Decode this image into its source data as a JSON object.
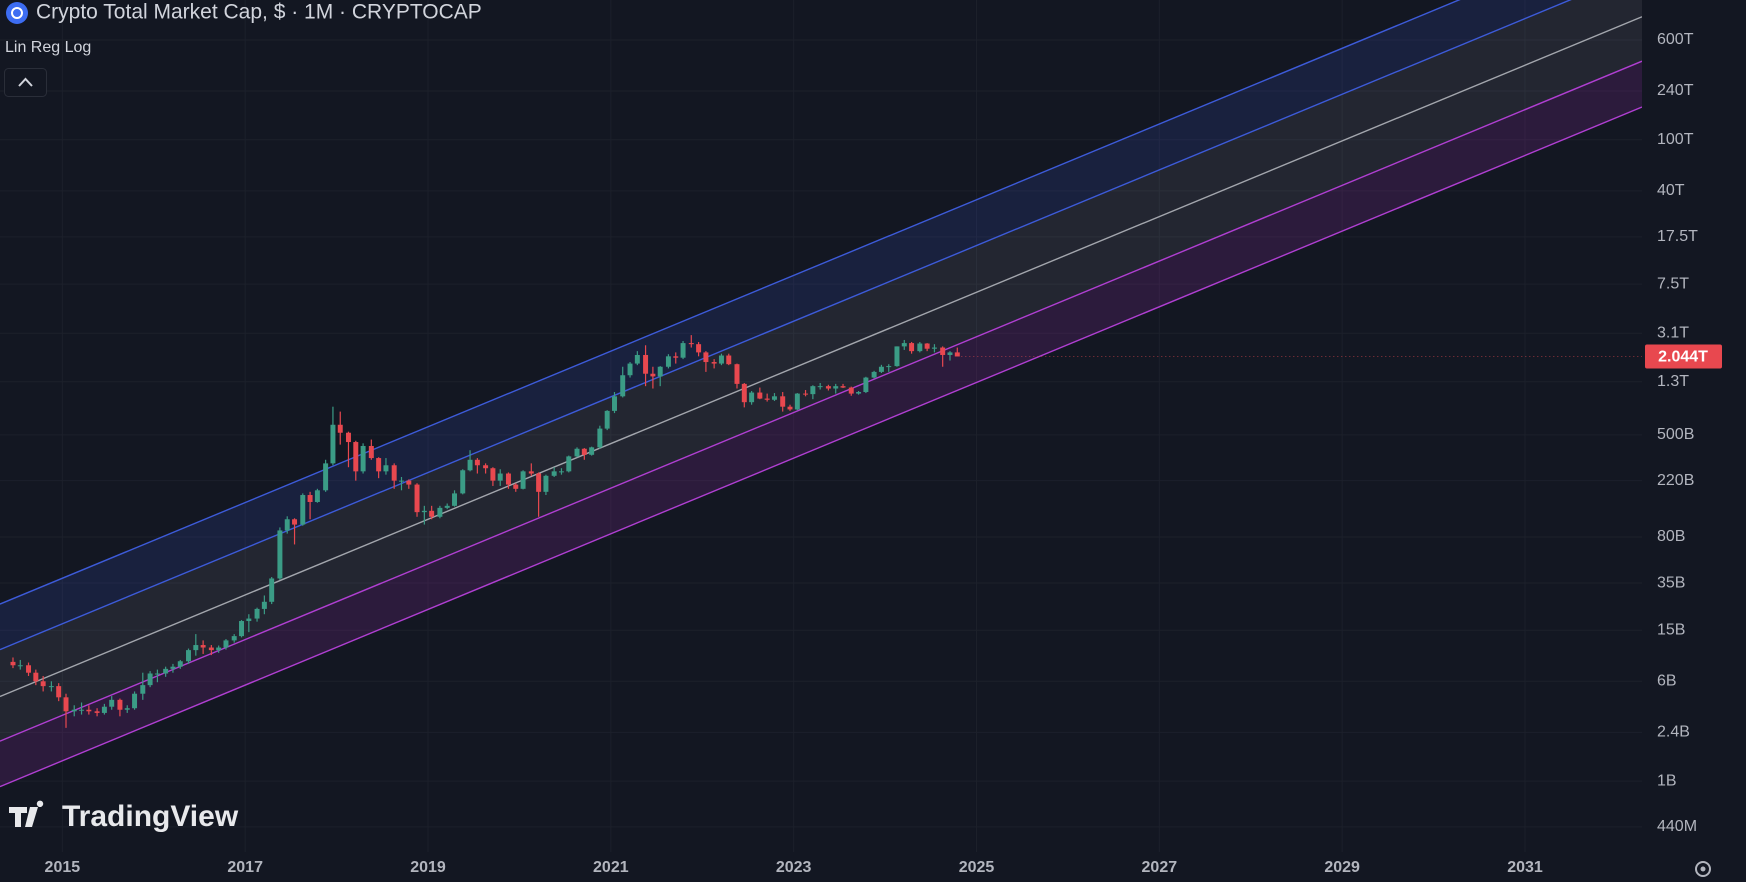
{
  "chart_data": {
    "type": "candlestick",
    "title": "Crypto Total Market Cap, $ · 1M · CRYPTOCAP",
    "indicator": "Lin Reg Log",
    "brand": "TradingView",
    "log_scale": true,
    "grid": true,
    "up_color": "#3b9c86",
    "down_color": "#e8484f",
    "xlim": [
      2014.318,
      2032.28
    ],
    "xticks": [
      2015,
      2017,
      2019,
      2021,
      2023,
      2025,
      2027,
      2029,
      2031
    ],
    "ylim": [
      0.28,
      1230000
    ],
    "yticks": [
      {
        "value": 0.44,
        "label": "440M"
      },
      {
        "value": 1,
        "label": "1B"
      },
      {
        "value": 2.4,
        "label": "2.4B"
      },
      {
        "value": 6,
        "label": "6B"
      },
      {
        "value": 15,
        "label": "15B"
      },
      {
        "value": 35,
        "label": "35B"
      },
      {
        "value": 80,
        "label": "80B"
      },
      {
        "value": 220,
        "label": "220B"
      },
      {
        "value": 500,
        "label": "500B"
      },
      {
        "value": 1300,
        "label": "1.3T"
      },
      {
        "value": 3100,
        "label": "3.1T"
      },
      {
        "value": 7500,
        "label": "7.5T"
      },
      {
        "value": 17500,
        "label": "17.5T"
      },
      {
        "value": 40000,
        "label": "40T"
      },
      {
        "value": 100000,
        "label": "100T"
      },
      {
        "value": 240000,
        "label": "240T"
      },
      {
        "value": 600000,
        "label": "600T"
      }
    ],
    "bands": [
      {
        "color": "#3d5bd9",
        "fill": "rgba(60,90,210,0.16)",
        "values": [
          24,
          4800000
        ]
      },
      {
        "color": "#3d5bd9",
        "fill": "rgba(200,200,215,0.09)",
        "values": [
          10.6,
          2100000
        ]
      },
      {
        "color": "#a3a6ad",
        "fill": "rgba(200,200,215,0.09)",
        "values": [
          4.57,
          910000
        ]
      },
      {
        "color": "#b03fd2",
        "fill": "rgba(170,50,190,0.17)",
        "values": [
          2.05,
          410000
        ]
      },
      {
        "color": "#b03fd2",
        "values": [
          0.906,
          180000
        ]
      }
    ],
    "last_value_label": "2.044T",
    "x": [
      2014.46,
      2014.54,
      2014.63,
      2014.71,
      2014.79,
      2014.88,
      2014.96,
      2015.04,
      2015.13,
      2015.21,
      2015.29,
      2015.38,
      2015.46,
      2015.54,
      2015.63,
      2015.71,
      2015.79,
      2015.88,
      2015.96,
      2016.04,
      2016.13,
      2016.21,
      2016.29,
      2016.38,
      2016.46,
      2016.54,
      2016.63,
      2016.71,
      2016.79,
      2016.88,
      2016.96,
      2017.04,
      2017.13,
      2017.21,
      2017.29,
      2017.38,
      2017.46,
      2017.54,
      2017.63,
      2017.71,
      2017.79,
      2017.88,
      2017.96,
      2018.04,
      2018.13,
      2018.21,
      2018.29,
      2018.38,
      2018.46,
      2018.54,
      2018.63,
      2018.71,
      2018.79,
      2018.88,
      2018.96,
      2019.04,
      2019.13,
      2019.21,
      2019.29,
      2019.38,
      2019.46,
      2019.54,
      2019.63,
      2019.71,
      2019.79,
      2019.88,
      2019.96,
      2020.04,
      2020.13,
      2020.21,
      2020.29,
      2020.38,
      2020.46,
      2020.54,
      2020.63,
      2020.71,
      2020.79,
      2020.88,
      2020.96,
      2021.04,
      2021.13,
      2021.21,
      2021.29,
      2021.38,
      2021.46,
      2021.54,
      2021.63,
      2021.71,
      2021.79,
      2021.88,
      2021.96,
      2022.04,
      2022.13,
      2022.21,
      2022.29,
      2022.38,
      2022.46,
      2022.54,
      2022.63,
      2022.71,
      2022.79,
      2022.88,
      2022.96,
      2023.04,
      2023.13,
      2023.21,
      2023.29,
      2023.38,
      2023.46,
      2023.54,
      2023.63,
      2023.71,
      2023.79,
      2023.88,
      2023.96,
      2024.04,
      2024.13,
      2024.21,
      2024.29,
      2024.38,
      2024.46,
      2024.54,
      2024.63,
      2024.71,
      2024.79
    ],
    "ohlc": [
      [
        8.5,
        9.2,
        7.6,
        8
      ],
      [
        8,
        8.8,
        7.4,
        8
      ],
      [
        8,
        8.4,
        6.6,
        7
      ],
      [
        7,
        7.4,
        5.6,
        6
      ],
      [
        6,
        6.6,
        5.0,
        5.5
      ],
      [
        5.5,
        6.0,
        5.0,
        5.5
      ],
      [
        5.5,
        5.8,
        4.2,
        4.5
      ],
      [
        4.5,
        4.8,
        2.6,
        3.5
      ],
      [
        3.5,
        3.9,
        3.2,
        3.6
      ],
      [
        3.6,
        4.1,
        3.3,
        3.6
      ],
      [
        3.6,
        3.9,
        3.3,
        3.5
      ],
      [
        3.5,
        3.7,
        3.2,
        3.4
      ],
      [
        3.4,
        4.0,
        3.3,
        3.8
      ],
      [
        3.8,
        4.6,
        3.6,
        4.3
      ],
      [
        4.3,
        4.4,
        3.2,
        3.6
      ],
      [
        3.6,
        3.9,
        3.4,
        3.7
      ],
      [
        3.7,
        5.0,
        3.6,
        4.8
      ],
      [
        4.8,
        7.0,
        4.3,
        5.6
      ],
      [
        5.6,
        7.2,
        5.4,
        6.9
      ],
      [
        6.9,
        7.4,
        5.9,
        6.9
      ],
      [
        6.9,
        7.8,
        6.5,
        7.5
      ],
      [
        7.5,
        8.2,
        7.0,
        7.8
      ],
      [
        7.8,
        8.8,
        7.5,
        8.6
      ],
      [
        8.6,
        10.8,
        8.2,
        10.5
      ],
      [
        10.5,
        14,
        9.5,
        11.5
      ],
      [
        11.5,
        12.5,
        9.8,
        11
      ],
      [
        11,
        11.5,
        9.6,
        10.5
      ],
      [
        10.5,
        11.4,
        10,
        11
      ],
      [
        11,
        12.8,
        10.6,
        12.5
      ],
      [
        12.5,
        14,
        12,
        13.5
      ],
      [
        13.5,
        18,
        13.2,
        17.7
      ],
      [
        17.7,
        20,
        14.5,
        18.5
      ],
      [
        18.5,
        22.5,
        17.5,
        22
      ],
      [
        22,
        28,
        20,
        25
      ],
      [
        25,
        39,
        24,
        38
      ],
      [
        38,
        95,
        37,
        90
      ],
      [
        90,
        116,
        85,
        110
      ],
      [
        110,
        112,
        70,
        100
      ],
      [
        100,
        175,
        98,
        170
      ],
      [
        170,
        180,
        110,
        150
      ],
      [
        150,
        190,
        148,
        185
      ],
      [
        185,
        320,
        180,
        300
      ],
      [
        300,
        830,
        290,
        600
      ],
      [
        600,
        760,
        420,
        520
      ],
      [
        520,
        530,
        280,
        440
      ],
      [
        440,
        450,
        220,
        260
      ],
      [
        260,
        430,
        250,
        410
      ],
      [
        410,
        460,
        320,
        330
      ],
      [
        330,
        335,
        230,
        260
      ],
      [
        260,
        330,
        245,
        290
      ],
      [
        290,
        300,
        190,
        220
      ],
      [
        220,
        235,
        185,
        220
      ],
      [
        220,
        225,
        190,
        205
      ],
      [
        205,
        210,
        115,
        125
      ],
      [
        125,
        140,
        100,
        128
      ],
      [
        128,
        140,
        110,
        115
      ],
      [
        115,
        140,
        112,
        135
      ],
      [
        135,
        146,
        132,
        140
      ],
      [
        140,
        185,
        138,
        175
      ],
      [
        175,
        270,
        172,
        265
      ],
      [
        265,
        380,
        260,
        320
      ],
      [
        320,
        330,
        250,
        290
      ],
      [
        290,
        300,
        250,
        275
      ],
      [
        275,
        280,
        200,
        220
      ],
      [
        220,
        270,
        200,
        250
      ],
      [
        250,
        255,
        190,
        205
      ],
      [
        205,
        210,
        180,
        190
      ],
      [
        190,
        265,
        188,
        260
      ],
      [
        260,
        300,
        240,
        250
      ],
      [
        250,
        255,
        115,
        180
      ],
      [
        180,
        245,
        170,
        240
      ],
      [
        240,
        280,
        235,
        260
      ],
      [
        260,
        275,
        245,
        260
      ],
      [
        260,
        345,
        255,
        340
      ],
      [
        340,
        400,
        335,
        390
      ],
      [
        390,
        395,
        320,
        350
      ],
      [
        350,
        405,
        345,
        400
      ],
      [
        400,
        590,
        390,
        560
      ],
      [
        560,
        780,
        545,
        770
      ],
      [
        770,
        1080,
        740,
        1000
      ],
      [
        1000,
        1700,
        980,
        1460
      ],
      [
        1460,
        1850,
        1400,
        1800
      ],
      [
        1800,
        2250,
        1750,
        2100
      ],
      [
        2100,
        2500,
        1200,
        1500
      ],
      [
        1500,
        1700,
        1150,
        1430
      ],
      [
        1430,
        1720,
        1200,
        1700
      ],
      [
        1700,
        2130,
        1650,
        2050
      ],
      [
        2050,
        2200,
        1800,
        2000
      ],
      [
        2000,
        2700,
        1950,
        2600
      ],
      [
        2600,
        3000,
        2400,
        2550
      ],
      [
        2550,
        2650,
        2050,
        2200
      ],
      [
        2200,
        2250,
        1550,
        1850
      ],
      [
        1850,
        1950,
        1650,
        1800
      ],
      [
        1800,
        2150,
        1750,
        2080
      ],
      [
        2080,
        2150,
        1750,
        1780
      ],
      [
        1780,
        1800,
        1150,
        1250
      ],
      [
        1250,
        1270,
        820,
        900
      ],
      [
        900,
        1100,
        860,
        1070
      ],
      [
        1070,
        1170,
        950,
        960
      ],
      [
        960,
        1050,
        910,
        940
      ],
      [
        940,
        1060,
        920,
        1000
      ],
      [
        1000,
        1080,
        760,
        830
      ],
      [
        830,
        860,
        770,
        790
      ],
      [
        790,
        1060,
        780,
        1050
      ],
      [
        1050,
        1120,
        1000,
        1040
      ],
      [
        1040,
        1220,
        950,
        1200
      ],
      [
        1200,
        1270,
        1130,
        1200
      ],
      [
        1200,
        1230,
        1110,
        1150
      ],
      [
        1150,
        1250,
        1050,
        1200
      ],
      [
        1200,
        1250,
        1160,
        1170
      ],
      [
        1170,
        1190,
        1010,
        1050
      ],
      [
        1050,
        1100,
        1030,
        1080
      ],
      [
        1080,
        1420,
        1060,
        1400
      ],
      [
        1400,
        1580,
        1380,
        1550
      ],
      [
        1550,
        1760,
        1520,
        1700
      ],
      [
        1700,
        1780,
        1550,
        1720
      ],
      [
        1720,
        2450,
        1700,
        2450
      ],
      [
        2450,
        2750,
        2300,
        2600
      ],
      [
        2600,
        2650,
        2150,
        2250
      ],
      [
        2250,
        2650,
        2200,
        2580
      ],
      [
        2580,
        2600,
        2250,
        2350
      ],
      [
        2350,
        2550,
        2200,
        2400
      ],
      [
        2400,
        2450,
        1700,
        2100
      ],
      [
        2100,
        2250,
        1900,
        2200
      ],
      [
        2200,
        2400,
        2050,
        2044
      ]
    ]
  }
}
